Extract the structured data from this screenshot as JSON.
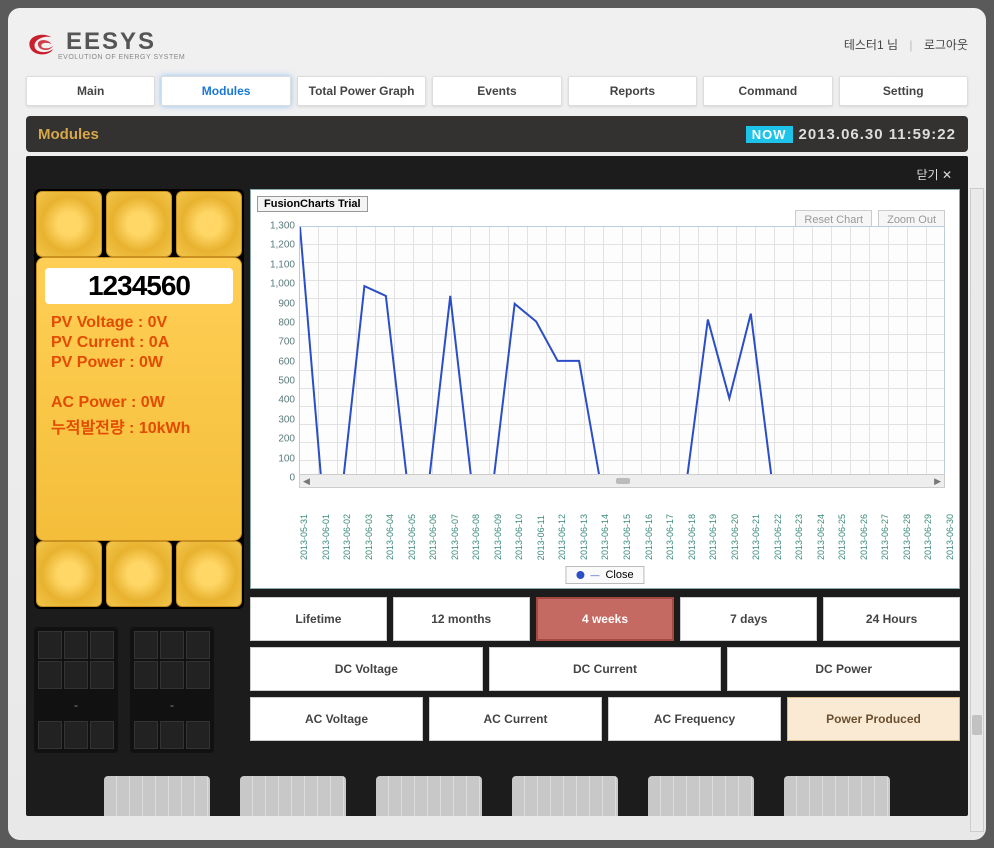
{
  "brand": {
    "name": "EESYS",
    "tagline": "EVOLUTION OF ENERGY SYSTEM",
    "swirl_color": "#c9202e"
  },
  "user": {
    "name": "테스터1",
    "honorific": "님",
    "logout": "로그아웃"
  },
  "nav": {
    "items": [
      "Main",
      "Modules",
      "Total Power Graph",
      "Events",
      "Reports",
      "Command",
      "Setting"
    ],
    "active_index": 1
  },
  "titlebar": {
    "section": "Modules",
    "now_label": "NOW",
    "datetime": "2013.06.30 11:59:22",
    "section_color": "#d6a84a",
    "now_bg": "#1dc3e8"
  },
  "close_label": "닫기",
  "module_info": {
    "serial": "1234560",
    "lines": [
      "PV Voltage : 0V",
      "PV Current : 0A",
      "PV Power : 0W"
    ],
    "lines2": [
      "AC Power : 0W",
      "누적발전량 : 10kWh"
    ],
    "text_color": "#e24b00",
    "tile_color": "#f2c64c"
  },
  "chart": {
    "watermark": "FusionCharts Trial",
    "buttons": {
      "reset": "Reset Chart",
      "zoom": "Zoom Out"
    },
    "legend_label": "Close",
    "line_color": "#2b4ec7",
    "axis_label_color": "#3a8a7a",
    "grid_color": "#e2e2e2",
    "y": {
      "min": 0,
      "max": 1300,
      "step": 100
    },
    "x_labels": [
      "2013-05-31",
      "2013-06-01",
      "2013-06-02",
      "2013-06-03",
      "2013-06-04",
      "2013-06-05",
      "2013-06-06",
      "2013-06-07",
      "2013-06-08",
      "2013-06-09",
      "2013-06-10",
      "2013-06-11",
      "2013-06-12",
      "2013-06-13",
      "2013-06-14",
      "2013-06-15",
      "2013-06-16",
      "2013-06-17",
      "2013-06-18",
      "2013-06-19",
      "2013-06-20",
      "2013-06-21",
      "2013-06-22",
      "2013-06-23",
      "2013-06-24",
      "2013-06-25",
      "2013-06-26",
      "2013-06-27",
      "2013-06-28",
      "2013-06-29",
      "2013-06-30"
    ],
    "values": [
      1300,
      0,
      0,
      1000,
      950,
      0,
      0,
      950,
      0,
      0,
      910,
      820,
      620,
      620,
      0,
      0,
      0,
      0,
      0,
      830,
      430,
      860,
      0,
      0,
      40,
      10,
      0,
      0,
      0,
      0,
      0
    ]
  },
  "range_buttons": {
    "items": [
      "Lifetime",
      "12 months",
      "4 weeks",
      "7 days",
      "24 Hours"
    ],
    "active_index": 2
  },
  "dc_buttons": [
    "DC Voltage",
    "DC Current",
    "DC Power"
  ],
  "ac_buttons": {
    "items": [
      "AC Voltage",
      "AC Current",
      "AC Frequency",
      "Power Produced"
    ],
    "active_index": 3
  }
}
